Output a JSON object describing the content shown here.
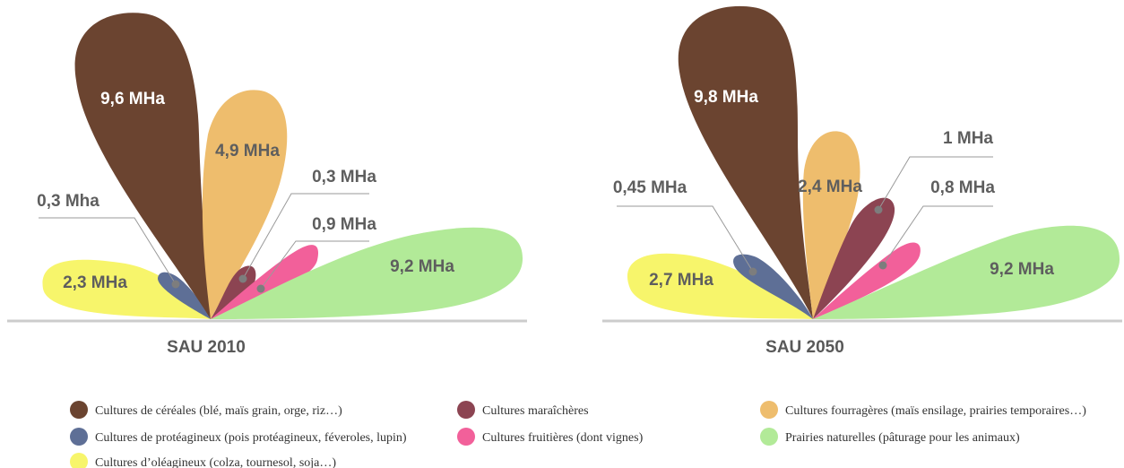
{
  "chart_data": [
    {
      "type": "petal",
      "title": "SAU 2010",
      "unit": "MHa",
      "petals": [
        {
          "category": "oleagineux",
          "label": "2,3 MHa",
          "value": 2.3,
          "label_style": "inside"
        },
        {
          "category": "proteagineux",
          "label": "0,3 Mha",
          "value": 0.3,
          "label_style": "callout"
        },
        {
          "category": "cereales",
          "label": "9,6 MHa",
          "value": 9.6,
          "label_style": "inside"
        },
        {
          "category": "fourrageres",
          "label": "4,9 MHa",
          "value": 4.9,
          "label_style": "inside"
        },
        {
          "category": "maraicheres",
          "label": "0,3 MHa",
          "value": 0.3,
          "label_style": "callout"
        },
        {
          "category": "fruitieres",
          "label": "0,9 MHa",
          "value": 0.9,
          "label_style": "callout"
        },
        {
          "category": "prairies",
          "label": "9,2 MHa",
          "value": 9.2,
          "label_style": "inside"
        }
      ]
    },
    {
      "type": "petal",
      "title": "SAU 2050",
      "unit": "MHa",
      "petals": [
        {
          "category": "oleagineux",
          "label": "2,7 MHa",
          "value": 2.7,
          "label_style": "inside"
        },
        {
          "category": "proteagineux",
          "label": "0,45 MHa",
          "value": 0.45,
          "label_style": "callout"
        },
        {
          "category": "cereales",
          "label": "9,8 MHa",
          "value": 9.8,
          "label_style": "inside"
        },
        {
          "category": "fourrageres",
          "label": "2,4 MHa",
          "value": 2.4,
          "label_style": "inside"
        },
        {
          "category": "maraicheres",
          "label": "1 MHa",
          "value": 1.0,
          "label_style": "callout"
        },
        {
          "category": "fruitieres",
          "label": "0,8 MHa",
          "value": 0.8,
          "label_style": "callout"
        },
        {
          "category": "prairies",
          "label": "9,2 MHa",
          "value": 9.2,
          "label_style": "inside"
        }
      ]
    }
  ],
  "colors": {
    "cereales": "#6b4430",
    "proteagineux": "#5e6f96",
    "oleagineux": "#f7f56b",
    "maraicheres": "#8c4452",
    "fruitieres": "#f2609a",
    "fourrageres": "#eebd6d",
    "prairies": "#b2ea98",
    "label_text": "#5e5e5e",
    "baseline": "#cccccc"
  },
  "legend": {
    "items": [
      {
        "key": "cereales",
        "label": "Cultures de céréales (blé, maïs grain, orge, riz…)"
      },
      {
        "key": "proteagineux",
        "label": "Cultures de protéagineux (pois protéagineux, féveroles, lupin)"
      },
      {
        "key": "oleagineux",
        "label": "Cultures d’oléagineux (colza, tournesol, soja…)"
      },
      {
        "key": "maraicheres",
        "label": "Cultures maraîchères"
      },
      {
        "key": "fruitieres",
        "label": "Cultures fruitières (dont vignes)"
      },
      {
        "key": "fourrageres",
        "label": "Cultures fourragères (maïs ensilage, prairies temporaires…)"
      },
      {
        "key": "prairies",
        "label": "Prairies naturelles (pâturage pour les animaux)"
      }
    ]
  }
}
